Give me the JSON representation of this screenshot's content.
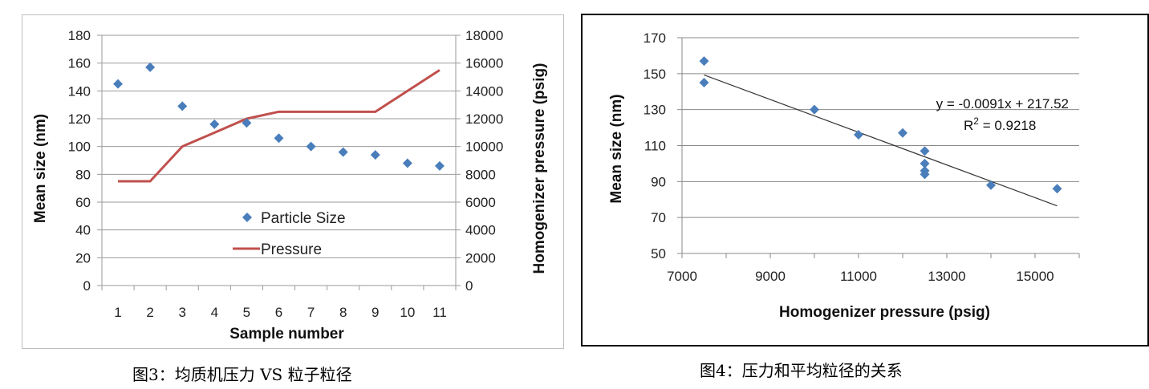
{
  "chart_data": [
    {
      "type": "scatter+line",
      "title": "",
      "xlabel": "Sample number",
      "ylabel": "Mean size (nm)",
      "y2label": "Homogenizer pressure (psig)",
      "ylim": [
        0,
        180
      ],
      "y_ticks": [
        "0",
        "20",
        "40",
        "60",
        "80",
        "100",
        "120",
        "140",
        "160",
        "180"
      ],
      "y2lim": [
        0,
        18000
      ],
      "y2_ticks": [
        "0",
        "2000",
        "4000",
        "6000",
        "8000",
        "10000",
        "12000",
        "14000",
        "16000",
        "18000"
      ],
      "categories": [
        "1",
        "2",
        "3",
        "4",
        "5",
        "6",
        "7",
        "8",
        "9",
        "10",
        "11"
      ],
      "grid": true,
      "legend_position": "center-inside",
      "series": [
        {
          "name": "Particle Size",
          "type": "scatter",
          "axis": "left",
          "color": "#4a7ebb",
          "values": [
            145,
            157,
            129,
            116,
            117,
            106,
            100,
            96,
            94,
            88,
            86
          ]
        },
        {
          "name": "Pressure",
          "type": "line",
          "axis": "right",
          "color": "#c0504d",
          "values": [
            7500,
            7500,
            10000,
            11000,
            12000,
            12500,
            12500,
            12500,
            12500,
            14000,
            15500
          ]
        }
      ],
      "caption": "图3：均质机压力 VS 粒子粒径"
    },
    {
      "type": "scatter",
      "title": "",
      "xlabel": "Homogenizer pressure (psig)",
      "ylabel": "Mean size (nm)",
      "xlim": [
        7000,
        16000
      ],
      "x_ticks": [
        "7000",
        "9000",
        "11000",
        "13000",
        "15000"
      ],
      "ylim": [
        50,
        170
      ],
      "y_ticks": [
        "50",
        "70",
        "90",
        "110",
        "130",
        "150",
        "170"
      ],
      "grid": true,
      "points": [
        {
          "x": 7500,
          "y": 157
        },
        {
          "x": 7500,
          "y": 145
        },
        {
          "x": 10000,
          "y": 130
        },
        {
          "x": 11000,
          "y": 116
        },
        {
          "x": 12000,
          "y": 117
        },
        {
          "x": 12500,
          "y": 107
        },
        {
          "x": 12500,
          "y": 100
        },
        {
          "x": 12500,
          "y": 96
        },
        {
          "x": 12500,
          "y": 94
        },
        {
          "x": 14000,
          "y": 88
        },
        {
          "x": 15500,
          "y": 86
        }
      ],
      "point_color": "#4a7ebb",
      "trendline": {
        "slope": -0.0091,
        "intercept": 217.52,
        "x_range": [
          7500,
          15500
        ],
        "color": "#333333"
      },
      "equation": "y = -0.0091x + 217.52",
      "r2_label": "R",
      "r2_sup": "2",
      "r2_value": " = 0.9218",
      "caption": "图4：压力和平均粒径的关系"
    }
  ]
}
